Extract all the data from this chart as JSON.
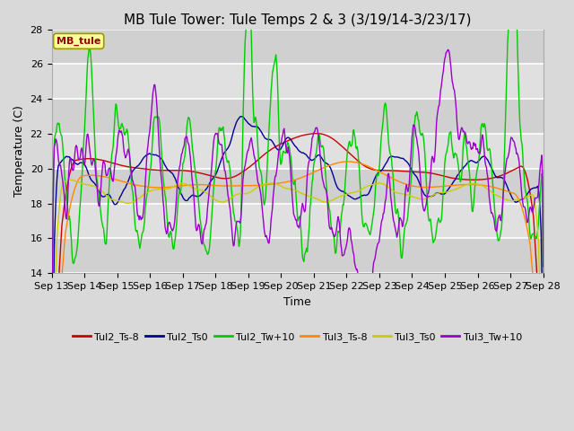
{
  "title": "MB Tule Tower: Tule Temps 2 & 3 (3/19/14-3/23/17)",
  "xlabel": "Time",
  "ylabel": "Temperature (C)",
  "ylim": [
    14,
    28
  ],
  "yticks": [
    14,
    16,
    18,
    20,
    22,
    24,
    26,
    28
  ],
  "xtick_labels": [
    "Sep 13",
    "Sep 14",
    "Sep 15",
    "Sep 16",
    "Sep 17",
    "Sep 18",
    "Sep 19",
    "Sep 20",
    "Sep 21",
    "Sep 22",
    "Sep 23",
    "Sep 24",
    "Sep 25",
    "Sep 26",
    "Sep 27",
    "Sep 28"
  ],
  "legend_entries": [
    "Tul2_Ts-8",
    "Tul2_Ts0",
    "Tul2_Tw+10",
    "Tul3_Ts-8",
    "Tul3_Ts0",
    "Tul3_Tw+10"
  ],
  "colors": {
    "Tul2_Ts-8": "#cc0000",
    "Tul2_Ts0": "#000099",
    "Tul2_Tw+10": "#00cc00",
    "Tul3_Ts-8": "#ff8800",
    "Tul3_Ts0": "#cccc00",
    "Tul3_Tw+10": "#9900cc"
  },
  "annotation_text": "MB_tule",
  "annotation_color": "#990000",
  "annotation_bg": "#ffff99",
  "annotation_edge": "#999900",
  "bg_color": "#d9d9d9",
  "plot_bg_light": "#e8e8e8",
  "plot_bg_dark": "#d0d0d0",
  "grid_color": "#ffffff",
  "title_fontsize": 11,
  "tick_fontsize": 8,
  "axis_label_fontsize": 9
}
